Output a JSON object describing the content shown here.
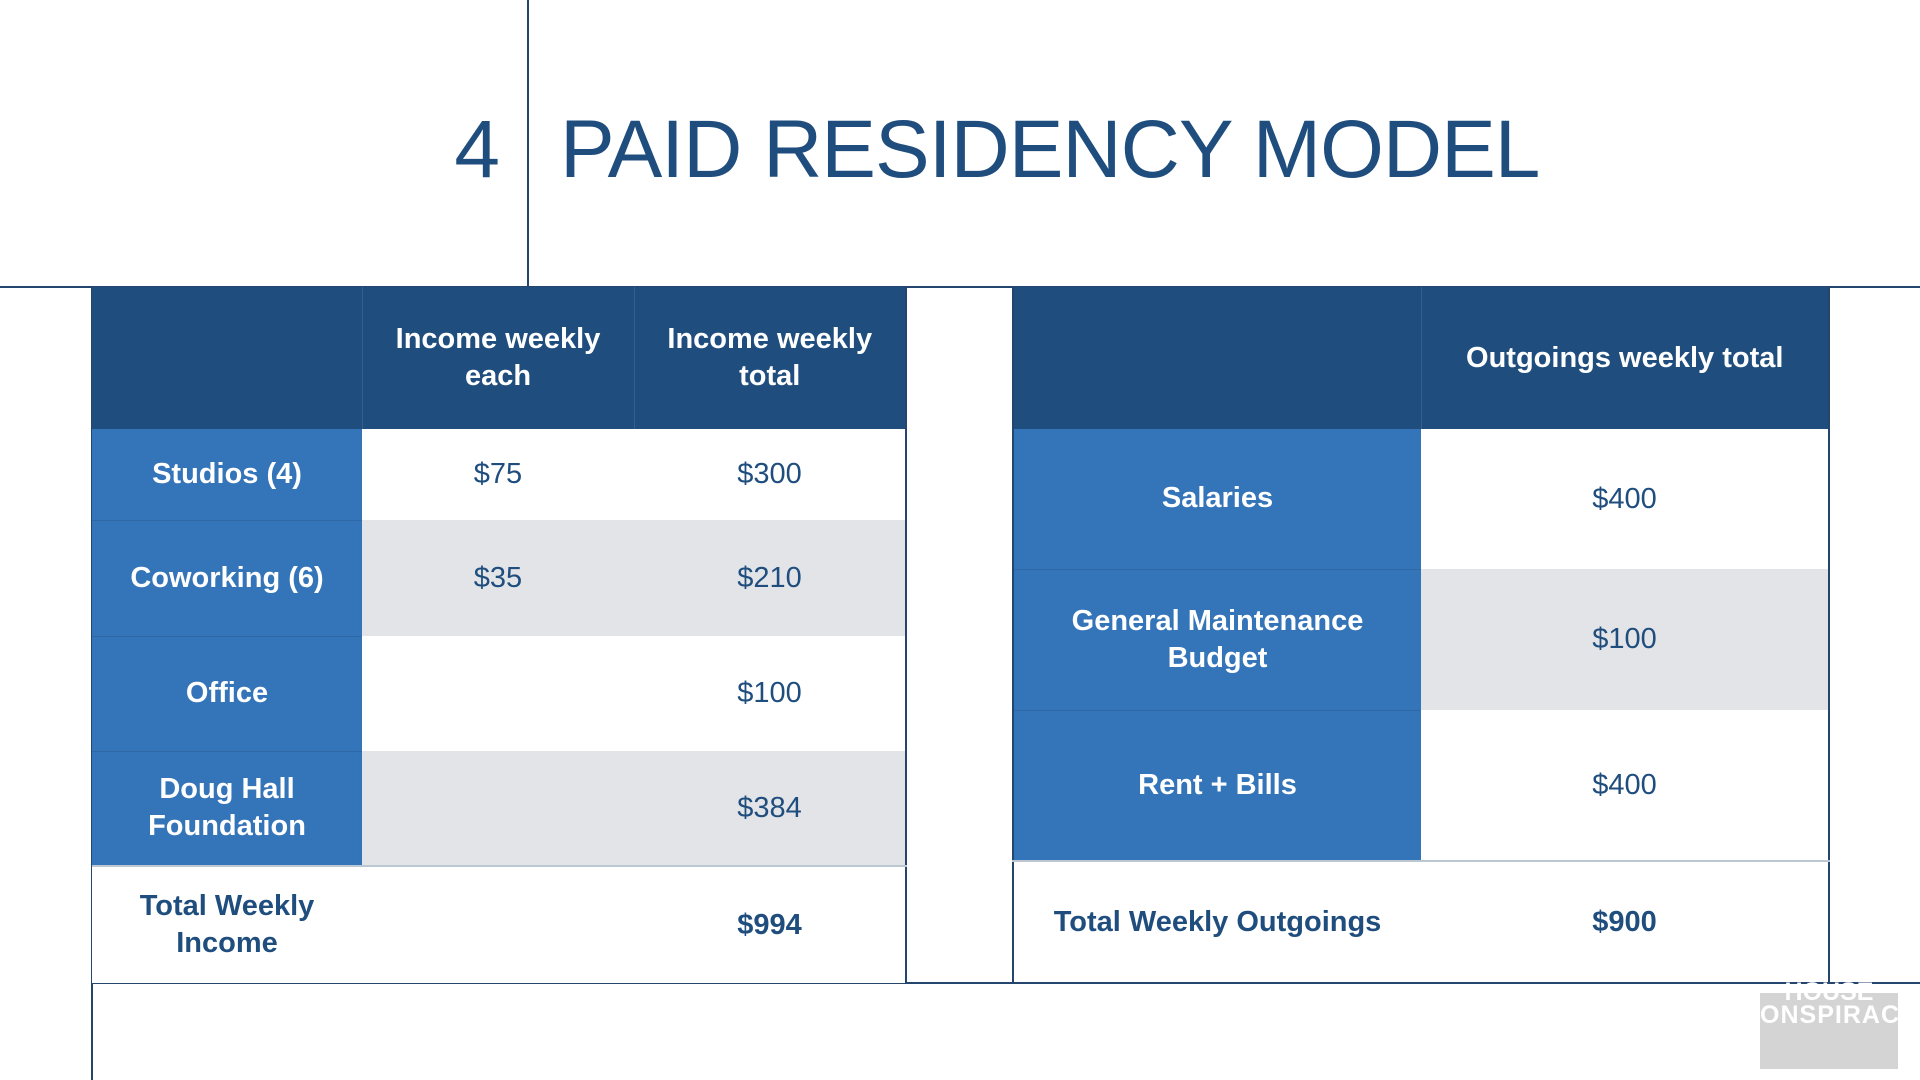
{
  "slide": {
    "number": "4",
    "title": "PAID RESIDENCY MODEL"
  },
  "income_table": {
    "headers": [
      "",
      "Income weekly each",
      "Income weekly total"
    ],
    "rows": [
      {
        "label": "Studios (4)",
        "each": "$75",
        "total": "$300"
      },
      {
        "label": "Coworking (6)",
        "each": "$35",
        "total": "$210"
      },
      {
        "label": "Office",
        "each": "",
        "total": "$100"
      },
      {
        "label": "Doug Hall Foundation",
        "each": "",
        "total": "$384"
      }
    ],
    "total": {
      "label": "Total Weekly Income",
      "value": "$994"
    }
  },
  "outgoings_table": {
    "headers": [
      "",
      "Outgoings weekly total"
    ],
    "rows": [
      {
        "label": "Salaries",
        "total": "$400"
      },
      {
        "label": "General Maintenance Budget",
        "total": "$100"
      },
      {
        "label": "Rent + Bills",
        "total": "$400"
      }
    ],
    "total": {
      "label": "Total Weekly Outgoings",
      "value": "$900"
    }
  },
  "watermark": {
    "line1": "HOUSE",
    "line2": "CONSPIRACY"
  },
  "colors": {
    "header_dark_blue": "#1f4e7e",
    "row_head_blue": "#3474b8",
    "alt_row_grey": "#e3e4e7"
  }
}
